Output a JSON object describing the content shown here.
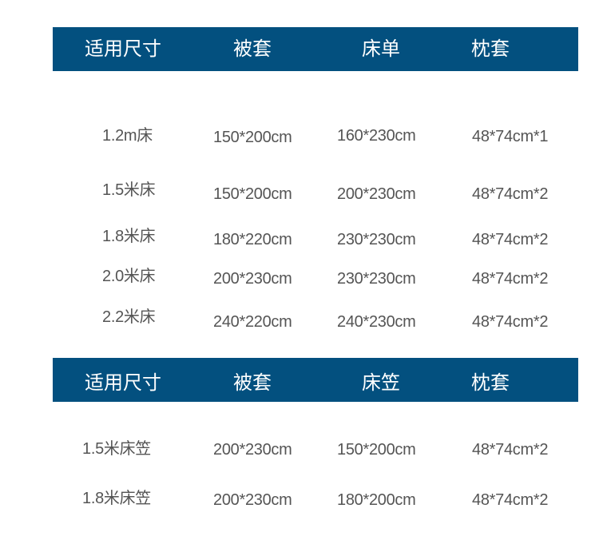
{
  "colors": {
    "header_bg": "#03507f",
    "header_text": "#ffffff",
    "cell_text": "#555555"
  },
  "table1": {
    "headers": [
      "适用尺寸",
      "被套",
      "床单",
      "枕套"
    ],
    "rows": [
      [
        "1.2m床",
        "150*200cm",
        "160*230cm",
        "48*74cm*1"
      ],
      [
        "1.5米床",
        "150*200cm",
        "200*230cm",
        "48*74cm*2"
      ],
      [
        "1.8米床",
        "180*220cm",
        "230*230cm",
        "48*74cm*2"
      ],
      [
        "2.0米床",
        "200*230cm",
        "230*230cm",
        "48*74cm*2"
      ],
      [
        "2.2米床",
        "240*220cm",
        "240*230cm",
        "48*74cm*2"
      ]
    ]
  },
  "table2": {
    "headers": [
      "适用尺寸",
      "被套",
      "床笠",
      "枕套"
    ],
    "rows": [
      [
        "1.5米床笠",
        "200*230cm",
        "150*200cm",
        "48*74cm*2"
      ],
      [
        "1.8米床笠",
        "200*230cm",
        "180*200cm",
        "48*74cm*2"
      ]
    ]
  }
}
